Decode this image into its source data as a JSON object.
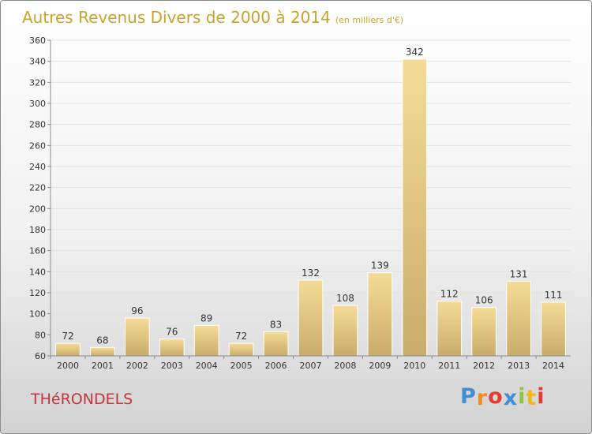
{
  "title": "Autres Revenus Divers de 2000 à 2014",
  "unit_note": "(en milliers d'€)",
  "place": "THéRONDELS",
  "logo": {
    "letters": [
      "P",
      "r",
      "o",
      "x",
      "i",
      "t",
      "i"
    ],
    "colors": [
      "#3d8fd6",
      "#f08c1a",
      "#e63c2e",
      "#3d8fd6",
      "#8dc63f",
      "#f0b81a",
      "#e63c2e"
    ]
  },
  "colors": {
    "title": "#c8a52a",
    "place": "#c4343e",
    "bar_light": "#f5dc96",
    "bar_dark": "#c8ad6a",
    "grid": "#e2e2e2",
    "axis": "#8c8c8c"
  },
  "chart_data": {
    "type": "bar",
    "title": "Autres Revenus Divers de 2000 à 2014",
    "subtitle": "(en milliers d'€)",
    "xlabel": "",
    "ylabel": "",
    "categories": [
      "2000",
      "2001",
      "2002",
      "2003",
      "2004",
      "2005",
      "2006",
      "2007",
      "2008",
      "2009",
      "2010",
      "2011",
      "2012",
      "2013",
      "2014"
    ],
    "values": [
      72,
      68,
      96,
      76,
      89,
      72,
      83,
      132,
      108,
      139,
      342,
      112,
      106,
      131,
      111
    ],
    "ylim": [
      60,
      360
    ],
    "yticks": [
      60,
      80,
      100,
      120,
      140,
      160,
      180,
      200,
      220,
      240,
      260,
      280,
      300,
      320,
      340,
      360
    ],
    "grid": true,
    "data_labels": true
  }
}
